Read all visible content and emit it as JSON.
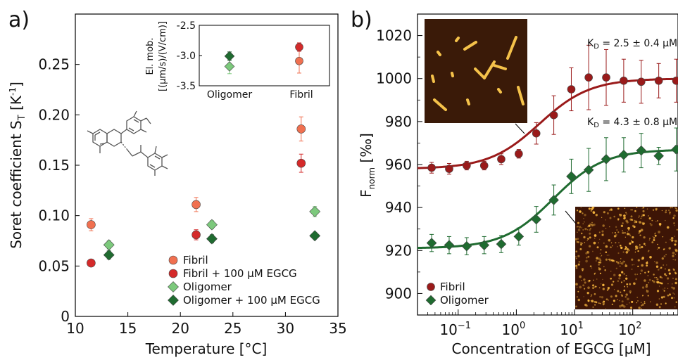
{
  "panel_a": {
    "label": "a)",
    "xlabel": "Temperature [°C]",
    "ylabel_main": "Soret coefficient  S",
    "ylabel_sub": "T",
    "ylabel_unit": " [K",
    "ylabel_exp": "-1",
    "ylabel_close": "]",
    "molecule_icon": "egcg-structure-icon"
  },
  "panel_b": {
    "label": "b)",
    "xlabel": "Concentration of EGCG [µM]",
    "ylabel_main": "F",
    "ylabel_sub": "norm",
    "ylabel_unit": " [‰]",
    "kd_fibril": {
      "k": "K",
      "sub": "D",
      "text": " = 2.5 ± 0.4 µM"
    },
    "kd_oligomer": {
      "k": "K",
      "sub": "D",
      "text": " = 4.3 ± 0.8 µM"
    },
    "image_top_icon": "afm-fibril-image",
    "image_bottom_icon": "afm-oligomer-image"
  },
  "chart_data": [
    {
      "type": "scatter",
      "name": "panel-a-main",
      "xlim": [
        10,
        35
      ],
      "ylim": [
        0,
        0.3
      ],
      "xticks": [
        10,
        15,
        20,
        25,
        30,
        35
      ],
      "yticks": [
        0,
        0.05,
        0.1,
        0.15,
        0.2,
        0.25
      ],
      "ytick_labels": [
        "0",
        "0.05",
        "0.10",
        "0.15",
        "0.20",
        "0.25"
      ],
      "series": [
        {
          "name": "Fibril",
          "marker": "circle",
          "color": "#f07050",
          "points": [
            {
              "x": 11.5,
              "y": 0.091,
              "err": 0.006
            },
            {
              "x": 21.5,
              "y": 0.111,
              "err": 0.007
            },
            {
              "x": 31.5,
              "y": 0.186,
              "err": 0.012
            }
          ]
        },
        {
          "name": "Fibril + 100 µM EGCG",
          "marker": "circle",
          "color": "#d42a2a",
          "points": [
            {
              "x": 11.5,
              "y": 0.053,
              "err": 0.003
            },
            {
              "x": 21.5,
              "y": 0.081,
              "err": 0.005
            },
            {
              "x": 31.5,
              "y": 0.152,
              "err": 0.009
            }
          ]
        },
        {
          "name": "Oligomer",
          "marker": "diamond",
          "color": "#7cc97c",
          "points": [
            {
              "x": 13.2,
              "y": 0.071,
              "err": 0.004
            },
            {
              "x": 23.0,
              "y": 0.091,
              "err": 0.004
            },
            {
              "x": 32.8,
              "y": 0.104,
              "err": 0.005
            }
          ]
        },
        {
          "name": "Oligomer + 100 µM EGCG",
          "marker": "diamond",
          "color": "#1f6b30",
          "points": [
            {
              "x": 13.2,
              "y": 0.061,
              "err": 0.004
            },
            {
              "x": 23.0,
              "y": 0.077,
              "err": 0.004
            },
            {
              "x": 32.8,
              "y": 0.08,
              "err": 0.003
            }
          ]
        }
      ],
      "legend_position": "bottom-right",
      "grid": false
    },
    {
      "type": "scatter",
      "name": "panel-a-inset",
      "ylabel_line1": "El. mob.",
      "ylabel_line2": "[(µm/s)/(V/cm)]",
      "ylim": [
        -3.5,
        -2.5
      ],
      "yticks": [
        -3.5,
        -3.0,
        -2.5
      ],
      "ytick_labels": [
        "-3.5",
        "-3.0",
        "-2.5"
      ],
      "categories": [
        "Oligomer",
        "Fibril"
      ],
      "series": [
        {
          "name": "Oligomer",
          "marker": "diamond",
          "color": "#7cc97c",
          "points": [
            {
              "x": "Oligomer",
              "y": -3.18,
              "err": 0.12
            }
          ]
        },
        {
          "name": "Oligomer + 100 µM EGCG",
          "marker": "diamond",
          "color": "#1f6b30",
          "points": [
            {
              "x": "Oligomer",
              "y": -3.01,
              "err": 0.07
            }
          ]
        },
        {
          "name": "Fibril",
          "marker": "circle",
          "color": "#f07050",
          "points": [
            {
              "x": "Fibril",
              "y": -3.09,
              "err": 0.2
            }
          ]
        },
        {
          "name": "Fibril + 100 µM EGCG",
          "marker": "circle",
          "color": "#d42a2a",
          "points": [
            {
              "x": "Fibril",
              "y": -2.86,
              "err": 0.07
            }
          ]
        }
      ]
    },
    {
      "type": "scatter",
      "name": "panel-b-binding",
      "xscale": "log",
      "xlim": [
        0.02,
        600
      ],
      "ylim": [
        890,
        1030
      ],
      "xticks": [
        0.1,
        1,
        10,
        100
      ],
      "xtick_labels": [
        {
          "base": "10",
          "exp": "−1"
        },
        {
          "base": "10",
          "exp": "0"
        },
        {
          "base": "10",
          "exp": "1"
        },
        {
          "base": "10",
          "exp": "2"
        }
      ],
      "yticks": [
        900,
        920,
        940,
        960,
        980,
        1000,
        1020
      ],
      "series": [
        {
          "name": "Fibril",
          "marker": "circle",
          "color": "#9a1a1a",
          "fit": {
            "bottom": 958,
            "top": 1000,
            "kd": 2.5
          },
          "points": [
            {
              "x": 0.035,
              "y": 958.5,
              "err": 2.5
            },
            {
              "x": 0.07,
              "y": 958,
              "err": 2.5
            },
            {
              "x": 0.14,
              "y": 959.5,
              "err": 2
            },
            {
              "x": 0.28,
              "y": 959.5,
              "err": 2
            },
            {
              "x": 0.55,
              "y": 962.5,
              "err": 2.5
            },
            {
              "x": 1.1,
              "y": 965,
              "err": 2
            },
            {
              "x": 2.2,
              "y": 974.5,
              "err": 5
            },
            {
              "x": 4.4,
              "y": 983,
              "err": 9
            },
            {
              "x": 8.8,
              "y": 995,
              "err": 10
            },
            {
              "x": 17.5,
              "y": 1000.5,
              "err": 15
            },
            {
              "x": 35,
              "y": 1000.5,
              "err": 13
            },
            {
              "x": 70,
              "y": 999,
              "err": 10
            },
            {
              "x": 140,
              "y": 998.5,
              "err": 10
            },
            {
              "x": 280,
              "y": 999,
              "err": 8
            },
            {
              "x": 560,
              "y": 999,
              "err": 10
            }
          ]
        },
        {
          "name": "Oligomer",
          "marker": "diamond",
          "color": "#1f6b30",
          "fit": {
            "bottom": 921,
            "top": 967,
            "kd": 4.3
          },
          "points": [
            {
              "x": 0.035,
              "y": 923.5,
              "err": 4
            },
            {
              "x": 0.07,
              "y": 922.5,
              "err": 4
            },
            {
              "x": 0.14,
              "y": 922,
              "err": 4
            },
            {
              "x": 0.28,
              "y": 922.5,
              "err": 4
            },
            {
              "x": 0.55,
              "y": 923,
              "err": 4
            },
            {
              "x": 1.1,
              "y": 926.5,
              "err": 4
            },
            {
              "x": 2.2,
              "y": 934.5,
              "err": 6
            },
            {
              "x": 4.4,
              "y": 943.5,
              "err": 7
            },
            {
              "x": 8.8,
              "y": 954.5,
              "err": 8
            },
            {
              "x": 17.5,
              "y": 957.5,
              "err": 10
            },
            {
              "x": 35,
              "y": 962.5,
              "err": 10
            },
            {
              "x": 70,
              "y": 964.5,
              "err": 8
            },
            {
              "x": 140,
              "y": 966.5,
              "err": 8
            },
            {
              "x": 280,
              "y": 964,
              "err": 4
            },
            {
              "x": 560,
              "y": 967,
              "err": 10
            }
          ]
        }
      ],
      "legend_position": "bottom-left",
      "grid": false
    }
  ]
}
